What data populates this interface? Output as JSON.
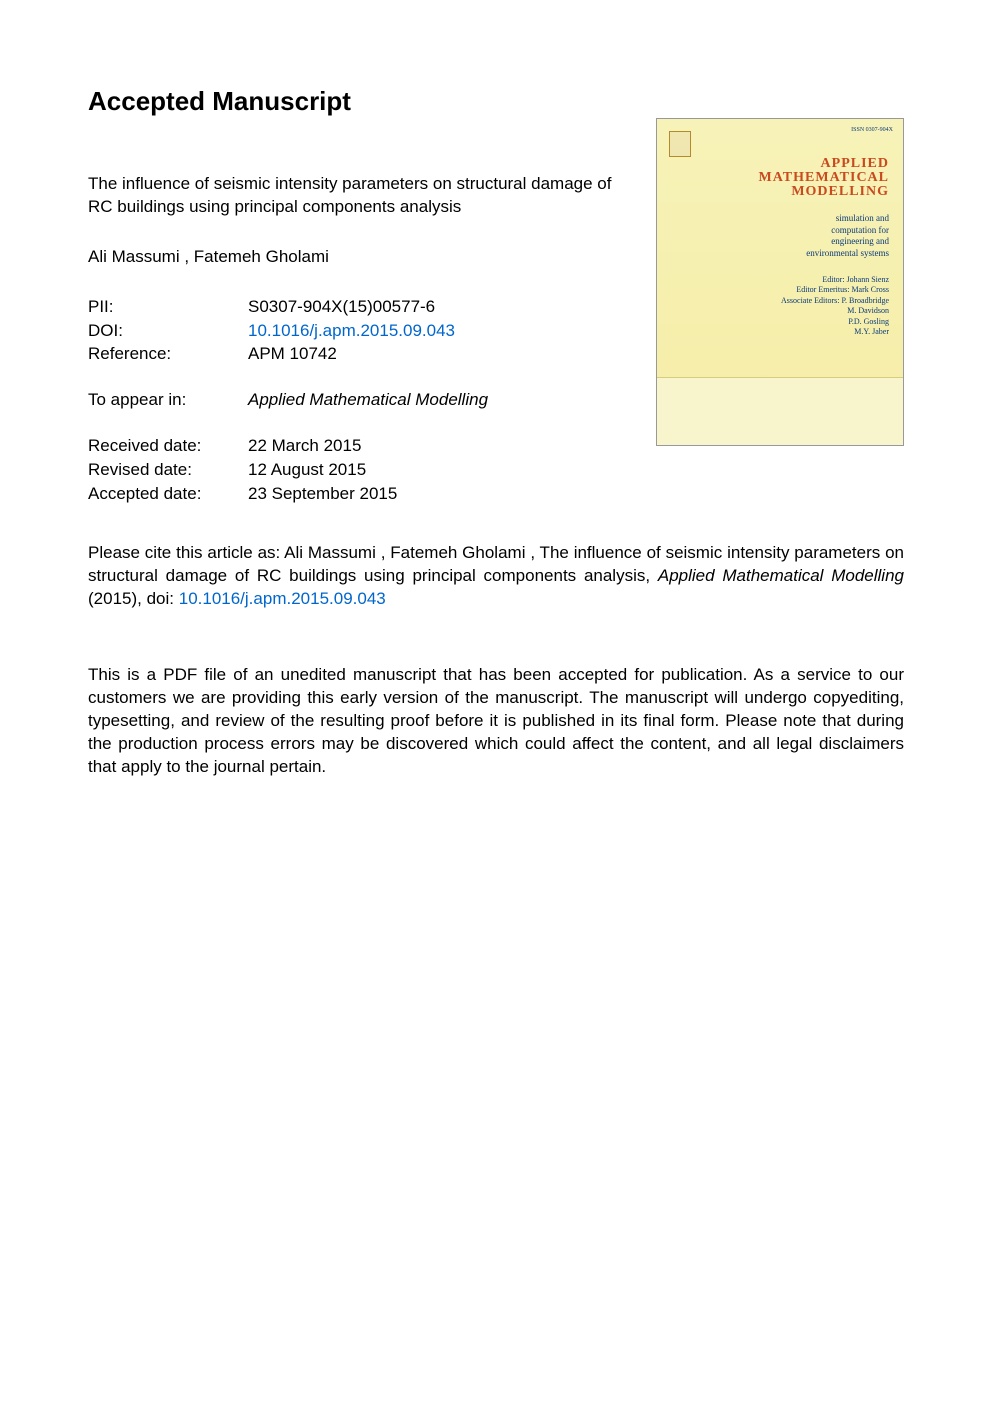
{
  "heading": "Accepted Manuscript",
  "title": {
    "line1": "The influence of seismic intensity parameters on structural damage of",
    "line2": "RC buildings using principal components analysis"
  },
  "authors": " Ali Massumi ,  Fatemeh Gholami",
  "meta": {
    "pii_label": "PII:",
    "pii_value": "S0307-904X(15)00577-6",
    "doi_label": "DOI:",
    "doi_value": "10.1016/j.apm.2015.09.043",
    "ref_label": "Reference:",
    "ref_value": "APM 10742"
  },
  "appear": {
    "label": "To appear in:",
    "journal": "Applied Mathematical Modelling"
  },
  "dates": {
    "received_label": "Received date:",
    "received_value": "22 March 2015",
    "revised_label": "Revised date:",
    "revised_value": "12 August 2015",
    "accepted_label": "Accepted date:",
    "accepted_value": "23 September 2015"
  },
  "citation": {
    "prefix": "Please cite this article as:  Ali Massumi ,  Fatemeh Gholami , The influence of seismic intensity parameters on structural damage of RC buildings using principal components analysis, ",
    "journal_it": "Applied Mathematical Modelling",
    "year_text": " (2015), doi: ",
    "doi_link": "10.1016/j.apm.2015.09.043"
  },
  "disclaimer": "This is a PDF file of an unedited manuscript that has been accepted for publication. As a service to our customers we are providing this early version of the manuscript. The manuscript will undergo copyediting, typesetting, and review of the resulting proof before it is published in its final form. Please note that during the production process errors may be discovered which could affect the content, and all legal disclaimers that apply to the journal pertain.",
  "cover": {
    "issn": "ISSN 0307-904X",
    "title_l1": "APPLIED",
    "title_l2": "MATHEMATICAL",
    "title_l3": "MODELLING",
    "subtitle_l1": "simulation and",
    "subtitle_l2": "computation for",
    "subtitle_l3": "engineering and",
    "subtitle_l4": "environmental systems",
    "ed_l1": "Editor: Johann Sienz",
    "ed_l2": "Editor Emeritus: Mark Cross",
    "ed_l3": "Associate Editors: P. Broadbridge",
    "ed_l4": "M. Davidson",
    "ed_l5": "P.D. Gosling",
    "ed_l6": "M.Y. Jaber"
  },
  "colors": {
    "link": "#0066cc",
    "cover_bg_top": "#f7f2b8",
    "cover_bg_bottom": "#f5eda6",
    "cover_title": "#c84a1e",
    "cover_text": "#0a3a7a"
  }
}
